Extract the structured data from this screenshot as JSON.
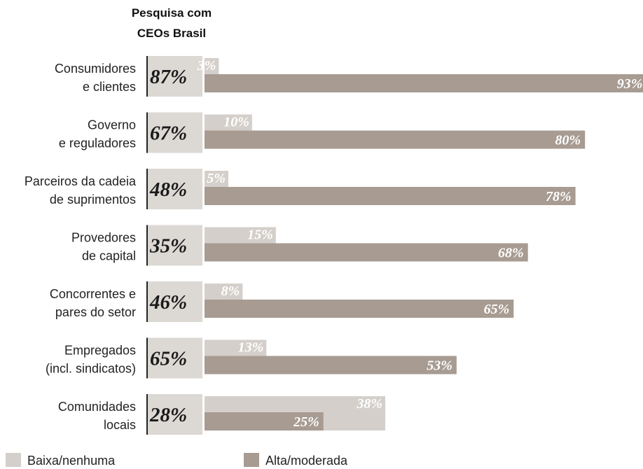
{
  "chart_data": {
    "type": "bar",
    "orientation": "horizontal",
    "header": [
      "Pesquisa com",
      "CEOs Brasil"
    ],
    "categories": [
      [
        "Consumidores",
        "e clientes"
      ],
      [
        "Governo",
        "e reguladores"
      ],
      [
        "Parceiros da cadeia",
        "de suprimentos"
      ],
      [
        "Provedores",
        "de capital"
      ],
      [
        "Concorrentes e",
        "pares do setor"
      ],
      [
        "Empregados",
        "(incl. sindicatos)"
      ],
      [
        "Comunidades",
        "locais"
      ]
    ],
    "brasil_values": [
      87,
      67,
      48,
      35,
      46,
      65,
      28
    ],
    "series": [
      {
        "name": "Baixa/nenhuma",
        "values": [
          3,
          10,
          5,
          15,
          8,
          13,
          38
        ],
        "color": "#d4cfca"
      },
      {
        "name": "Alta/moderada",
        "values": [
          93,
          80,
          78,
          68,
          65,
          53,
          25
        ],
        "color": "#a79b92"
      }
    ],
    "value_suffix": "%",
    "xlim": [
      0,
      100
    ],
    "grid": false,
    "legend_position": "bottom"
  },
  "colors": {
    "brasil_box": "#dcd8d4",
    "divider": "#222222"
  }
}
